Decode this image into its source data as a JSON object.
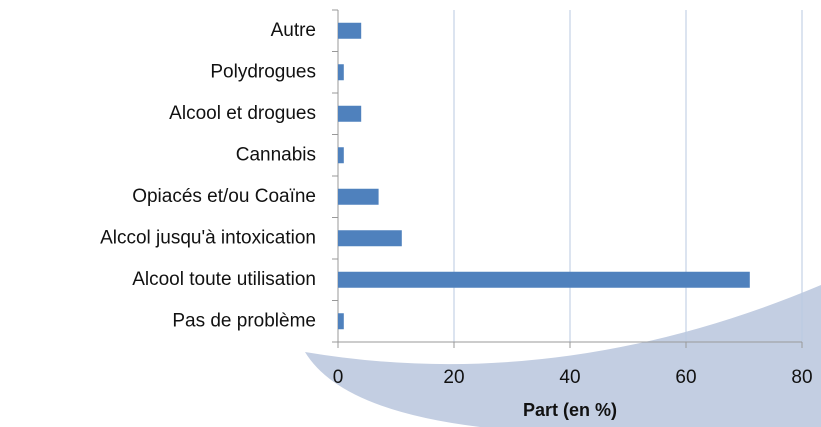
{
  "chart_data": {
    "type": "barh",
    "categories": [
      "Autre",
      "Polydrogues",
      "Alcool et drogues",
      "Cannabis",
      "Opiacés et/ou Coaïne",
      "Alccol jusqu'à intoxication",
      "Alcool toute utilisation",
      "Pas de problème"
    ],
    "values": [
      4,
      1,
      4,
      1,
      7,
      11,
      71,
      1
    ],
    "color": "#4f81bd",
    "x_label": "Part (en %)",
    "xlim": [
      0,
      80
    ],
    "xticks": [
      0,
      20,
      40,
      60,
      80
    ],
    "grid": true
  }
}
